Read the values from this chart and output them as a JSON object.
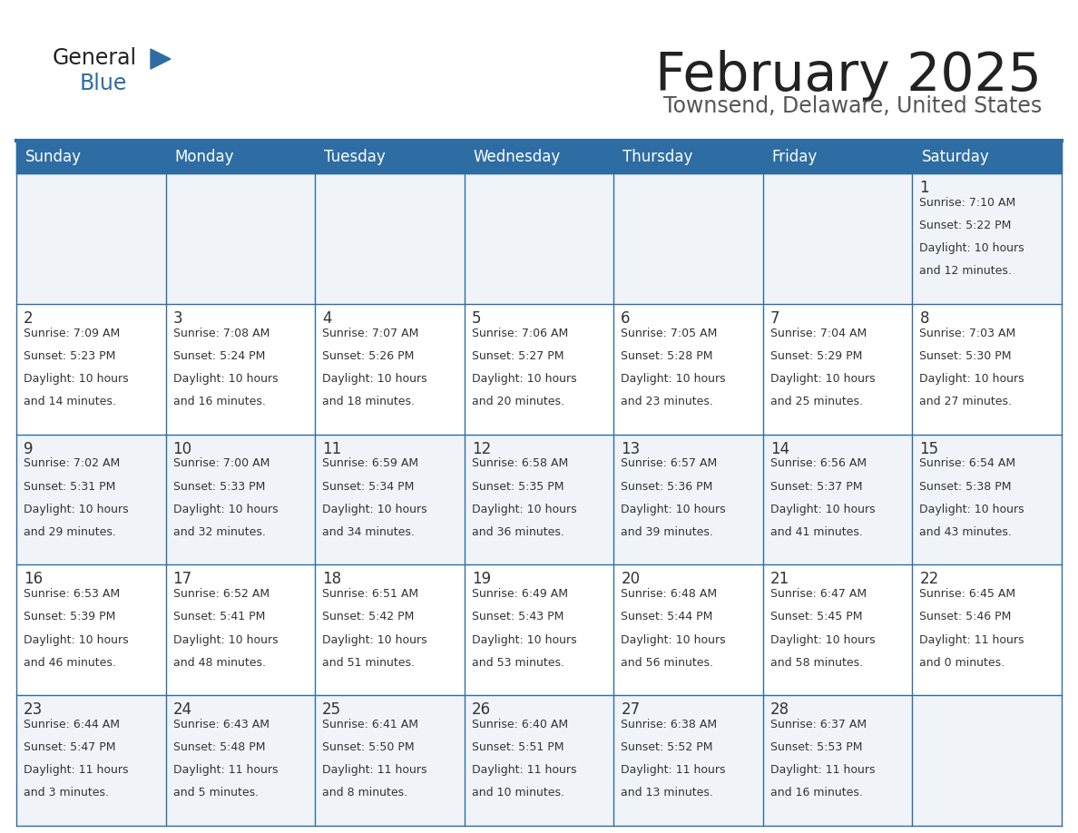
{
  "title": "February 2025",
  "subtitle": "Townsend, Delaware, United States",
  "header_bg": "#2E6DA4",
  "header_text_color": "#FFFFFF",
  "cell_bg_light": "#F0F4F8",
  "cell_bg_white": "#FFFFFF",
  "border_color": "#2E6DA4",
  "text_color": "#333333",
  "day_headers": [
    "Sunday",
    "Monday",
    "Tuesday",
    "Wednesday",
    "Thursday",
    "Friday",
    "Saturday"
  ],
  "calendar_data": [
    [
      {
        "day": "",
        "sunrise": "",
        "sunset": "",
        "daylight1": "",
        "daylight2": ""
      },
      {
        "day": "",
        "sunrise": "",
        "sunset": "",
        "daylight1": "",
        "daylight2": ""
      },
      {
        "day": "",
        "sunrise": "",
        "sunset": "",
        "daylight1": "",
        "daylight2": ""
      },
      {
        "day": "",
        "sunrise": "",
        "sunset": "",
        "daylight1": "",
        "daylight2": ""
      },
      {
        "day": "",
        "sunrise": "",
        "sunset": "",
        "daylight1": "",
        "daylight2": ""
      },
      {
        "day": "",
        "sunrise": "",
        "sunset": "",
        "daylight1": "",
        "daylight2": ""
      },
      {
        "day": "1",
        "sunrise": "Sunrise: 7:10 AM",
        "sunset": "Sunset: 5:22 PM",
        "daylight1": "Daylight: 10 hours",
        "daylight2": "and 12 minutes."
      }
    ],
    [
      {
        "day": "2",
        "sunrise": "Sunrise: 7:09 AM",
        "sunset": "Sunset: 5:23 PM",
        "daylight1": "Daylight: 10 hours",
        "daylight2": "and 14 minutes."
      },
      {
        "day": "3",
        "sunrise": "Sunrise: 7:08 AM",
        "sunset": "Sunset: 5:24 PM",
        "daylight1": "Daylight: 10 hours",
        "daylight2": "and 16 minutes."
      },
      {
        "day": "4",
        "sunrise": "Sunrise: 7:07 AM",
        "sunset": "Sunset: 5:26 PM",
        "daylight1": "Daylight: 10 hours",
        "daylight2": "and 18 minutes."
      },
      {
        "day": "5",
        "sunrise": "Sunrise: 7:06 AM",
        "sunset": "Sunset: 5:27 PM",
        "daylight1": "Daylight: 10 hours",
        "daylight2": "and 20 minutes."
      },
      {
        "day": "6",
        "sunrise": "Sunrise: 7:05 AM",
        "sunset": "Sunset: 5:28 PM",
        "daylight1": "Daylight: 10 hours",
        "daylight2": "and 23 minutes."
      },
      {
        "day": "7",
        "sunrise": "Sunrise: 7:04 AM",
        "sunset": "Sunset: 5:29 PM",
        "daylight1": "Daylight: 10 hours",
        "daylight2": "and 25 minutes."
      },
      {
        "day": "8",
        "sunrise": "Sunrise: 7:03 AM",
        "sunset": "Sunset: 5:30 PM",
        "daylight1": "Daylight: 10 hours",
        "daylight2": "and 27 minutes."
      }
    ],
    [
      {
        "day": "9",
        "sunrise": "Sunrise: 7:02 AM",
        "sunset": "Sunset: 5:31 PM",
        "daylight1": "Daylight: 10 hours",
        "daylight2": "and 29 minutes."
      },
      {
        "day": "10",
        "sunrise": "Sunrise: 7:00 AM",
        "sunset": "Sunset: 5:33 PM",
        "daylight1": "Daylight: 10 hours",
        "daylight2": "and 32 minutes."
      },
      {
        "day": "11",
        "sunrise": "Sunrise: 6:59 AM",
        "sunset": "Sunset: 5:34 PM",
        "daylight1": "Daylight: 10 hours",
        "daylight2": "and 34 minutes."
      },
      {
        "day": "12",
        "sunrise": "Sunrise: 6:58 AM",
        "sunset": "Sunset: 5:35 PM",
        "daylight1": "Daylight: 10 hours",
        "daylight2": "and 36 minutes."
      },
      {
        "day": "13",
        "sunrise": "Sunrise: 6:57 AM",
        "sunset": "Sunset: 5:36 PM",
        "daylight1": "Daylight: 10 hours",
        "daylight2": "and 39 minutes."
      },
      {
        "day": "14",
        "sunrise": "Sunrise: 6:56 AM",
        "sunset": "Sunset: 5:37 PM",
        "daylight1": "Daylight: 10 hours",
        "daylight2": "and 41 minutes."
      },
      {
        "day": "15",
        "sunrise": "Sunrise: 6:54 AM",
        "sunset": "Sunset: 5:38 PM",
        "daylight1": "Daylight: 10 hours",
        "daylight2": "and 43 minutes."
      }
    ],
    [
      {
        "day": "16",
        "sunrise": "Sunrise: 6:53 AM",
        "sunset": "Sunset: 5:39 PM",
        "daylight1": "Daylight: 10 hours",
        "daylight2": "and 46 minutes."
      },
      {
        "day": "17",
        "sunrise": "Sunrise: 6:52 AM",
        "sunset": "Sunset: 5:41 PM",
        "daylight1": "Daylight: 10 hours",
        "daylight2": "and 48 minutes."
      },
      {
        "day": "18",
        "sunrise": "Sunrise: 6:51 AM",
        "sunset": "Sunset: 5:42 PM",
        "daylight1": "Daylight: 10 hours",
        "daylight2": "and 51 minutes."
      },
      {
        "day": "19",
        "sunrise": "Sunrise: 6:49 AM",
        "sunset": "Sunset: 5:43 PM",
        "daylight1": "Daylight: 10 hours",
        "daylight2": "and 53 minutes."
      },
      {
        "day": "20",
        "sunrise": "Sunrise: 6:48 AM",
        "sunset": "Sunset: 5:44 PM",
        "daylight1": "Daylight: 10 hours",
        "daylight2": "and 56 minutes."
      },
      {
        "day": "21",
        "sunrise": "Sunrise: 6:47 AM",
        "sunset": "Sunset: 5:45 PM",
        "daylight1": "Daylight: 10 hours",
        "daylight2": "and 58 minutes."
      },
      {
        "day": "22",
        "sunrise": "Sunrise: 6:45 AM",
        "sunset": "Sunset: 5:46 PM",
        "daylight1": "Daylight: 11 hours",
        "daylight2": "and 0 minutes."
      }
    ],
    [
      {
        "day": "23",
        "sunrise": "Sunrise: 6:44 AM",
        "sunset": "Sunset: 5:47 PM",
        "daylight1": "Daylight: 11 hours",
        "daylight2": "and 3 minutes."
      },
      {
        "day": "24",
        "sunrise": "Sunrise: 6:43 AM",
        "sunset": "Sunset: 5:48 PM",
        "daylight1": "Daylight: 11 hours",
        "daylight2": "and 5 minutes."
      },
      {
        "day": "25",
        "sunrise": "Sunrise: 6:41 AM",
        "sunset": "Sunset: 5:50 PM",
        "daylight1": "Daylight: 11 hours",
        "daylight2": "and 8 minutes."
      },
      {
        "day": "26",
        "sunrise": "Sunrise: 6:40 AM",
        "sunset": "Sunset: 5:51 PM",
        "daylight1": "Daylight: 11 hours",
        "daylight2": "and 10 minutes."
      },
      {
        "day": "27",
        "sunrise": "Sunrise: 6:38 AM",
        "sunset": "Sunset: 5:52 PM",
        "daylight1": "Daylight: 11 hours",
        "daylight2": "and 13 minutes."
      },
      {
        "day": "28",
        "sunrise": "Sunrise: 6:37 AM",
        "sunset": "Sunset: 5:53 PM",
        "daylight1": "Daylight: 11 hours",
        "daylight2": "and 16 minutes."
      },
      {
        "day": "",
        "sunrise": "",
        "sunset": "",
        "daylight1": "",
        "daylight2": ""
      }
    ]
  ]
}
